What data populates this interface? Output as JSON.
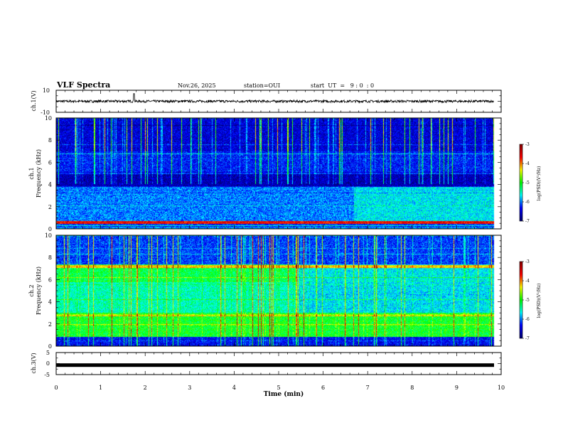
{
  "header": {
    "title": "VLF Spectra",
    "date": "Nov.26, 2025",
    "station": "station=OUI",
    "start_ut": "start  UT  =   9 : 0  : 0"
  },
  "chart_data": [
    {
      "type": "line",
      "panel": "ch1-waveform",
      "ylabel": "ch.1(V)",
      "ylim": [
        -10,
        10
      ],
      "yticks": [
        "10",
        "-10"
      ],
      "baseline": 0,
      "x_range_min": [
        0,
        10
      ],
      "trace_extent_min": 9.84,
      "notable_spike_min": 1.75
    },
    {
      "type": "heatmap",
      "panel": "ch1-spectrogram",
      "ylabel_top": "ch.1",
      "ylabel": "Frequency (kHz)",
      "ylim": [
        0,
        10
      ],
      "yticks": [
        "0",
        "2",
        "4",
        "6",
        "8",
        "10"
      ],
      "colorbar": {
        "label": "log(PSD)(V²/Hz)",
        "range": [
          -7,
          -3
        ],
        "ticks": [
          "-3",
          "-4",
          "-5",
          "-6",
          "-7"
        ]
      }
    },
    {
      "type": "heatmap",
      "panel": "ch2-spectrogram",
      "ylabel_top": "ch.2",
      "ylabel": "Frequency (kHz)",
      "ylim": [
        0,
        10
      ],
      "yticks": [
        "0",
        "2",
        "4",
        "6",
        "8",
        "10"
      ],
      "colorbar": {
        "label": "log(PSD)(V²/Hz)",
        "range": [
          -7,
          -3
        ],
        "ticks": [
          "-3",
          "-4",
          "-5",
          "-6",
          "-7"
        ]
      }
    },
    {
      "type": "line",
      "panel": "ch3-waveform",
      "ylabel": "ch.3(V)",
      "ylim": [
        -5,
        5
      ],
      "yticks": [
        "5",
        "0",
        "-5"
      ],
      "baseline": -0.7
    }
  ],
  "xaxis": {
    "label": "Time (min)",
    "range": [
      0,
      10
    ],
    "ticks": [
      "0",
      "1",
      "2",
      "3",
      "4",
      "5",
      "6",
      "7",
      "8",
      "9",
      "10"
    ]
  },
  "colors": {
    "ink": "#000000",
    "colormap": [
      "#00006e",
      "#0000ff",
      "#00ffff",
      "#00ff00",
      "#ffff00",
      "#ff0000",
      "#8b0000"
    ]
  }
}
